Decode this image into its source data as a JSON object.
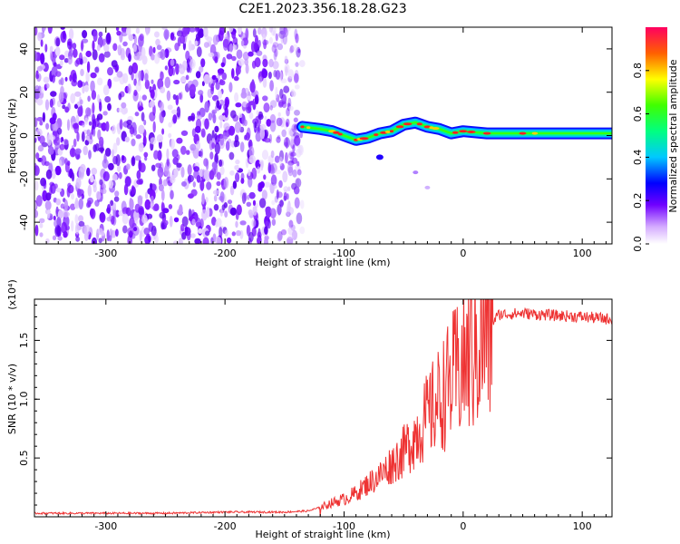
{
  "title": "C2E1.2023.356.18.28.G23",
  "chart_data": [
    {
      "type": "heatmap",
      "xlabel": "Height of straight line (km)",
      "ylabel": "Frequency (Hz)",
      "xlim": [
        -360,
        125
      ],
      "ylim": [
        -50,
        50
      ],
      "xticks": [
        -300,
        -200,
        -100,
        0,
        100
      ],
      "yticks": [
        -40,
        -20,
        0,
        20,
        40
      ],
      "colorbar": {
        "label": "Normalized spectral amplitude",
        "range": [
          0.0,
          1.0
        ],
        "ticks": [
          "0.0",
          "0.2",
          "0.4",
          "0.6",
          "0.8"
        ]
      },
      "regions": [
        {
          "name": "noise",
          "x": [
            -360,
            -135
          ],
          "y": [
            -50,
            50
          ],
          "amplitude": 0.15
        },
        {
          "name": "signal",
          "x": [
            -135,
            125
          ],
          "y": [
            -3,
            5
          ],
          "amplitude": 0.5
        }
      ],
      "signal_trace": {
        "x": [
          -135,
          -120,
          -110,
          -100,
          -90,
          -80,
          -70,
          -60,
          -50,
          -40,
          -30,
          -20,
          -10,
          0,
          20,
          50,
          80,
          125
        ],
        "y": [
          4,
          3,
          2,
          0,
          -2,
          -1,
          1,
          2,
          5,
          6,
          4,
          3,
          1,
          2,
          1,
          1,
          1,
          1
        ]
      }
    },
    {
      "type": "line",
      "xlabel": "Height of straight line (km)",
      "ylabel": "SNR (10 * v/v)",
      "yscale_note": "(x10⁴)",
      "xlim": [
        -360,
        125
      ],
      "ylim": [
        0,
        1.85
      ],
      "xticks": [
        -300,
        -200,
        -100,
        0,
        100
      ],
      "yticks": [
        "0.5",
        "1.0",
        "1.5"
      ],
      "color": "#ee3333",
      "series": [
        {
          "x": [
            -360,
            -300,
            -250,
            -200,
            -150,
            -130,
            -120,
            -110,
            -100,
            -90,
            -80,
            -70,
            -60,
            -50,
            -40,
            -30,
            -20,
            -10,
            0,
            10,
            20,
            30,
            50,
            80,
            100,
            125
          ],
          "y": [
            0.03,
            0.03,
            0.03,
            0.04,
            0.04,
            0.05,
            0.08,
            0.12,
            0.15,
            0.2,
            0.28,
            0.35,
            0.45,
            0.55,
            0.7,
            0.85,
            1.0,
            1.15,
            1.3,
            1.45,
            1.6,
            1.72,
            1.73,
            1.71,
            1.7,
            1.68
          ]
        }
      ]
    }
  ]
}
